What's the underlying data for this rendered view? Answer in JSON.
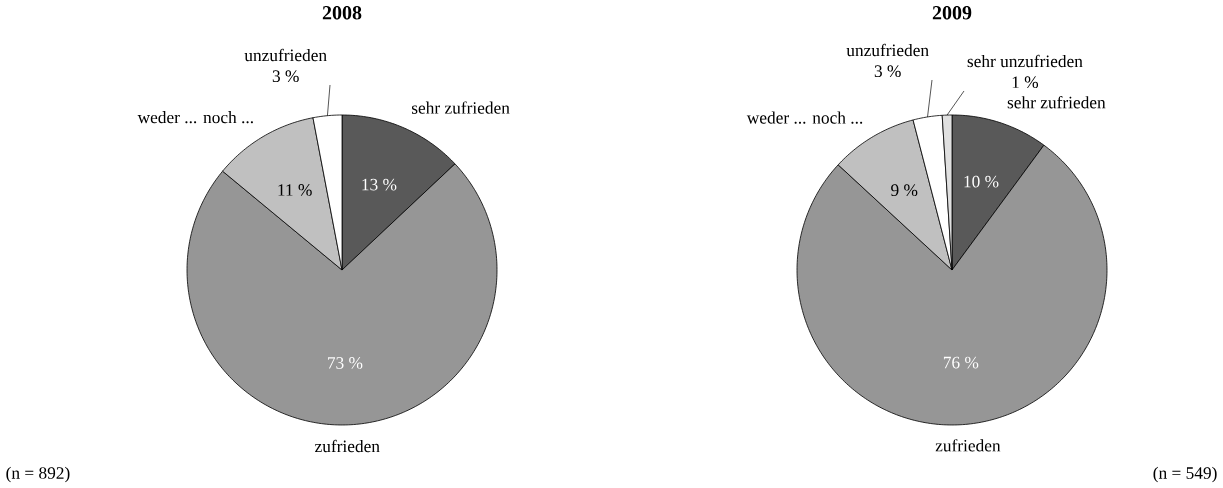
{
  "chart_data": [
    {
      "type": "pie",
      "title": "2008",
      "categories": [
        "sehr zufrieden",
        "zufrieden",
        "weder ... noch ...",
        "unzufrieden"
      ],
      "values": [
        13,
        73,
        11,
        3
      ],
      "colors": [
        "#595959",
        "#969696",
        "#c0c0c0",
        "#ffffff"
      ],
      "value_labels": [
        "13 %",
        "73 %",
        "11 %",
        "3 %"
      ],
      "annotations": [
        "(n = 892)"
      ]
    },
    {
      "type": "pie",
      "title": "2009",
      "categories": [
        "sehr zufrieden",
        "zufrieden",
        "weder ... noch ...",
        "unzufrieden",
        "sehr unzufrieden"
      ],
      "values": [
        10,
        76,
        9,
        3,
        1
      ],
      "colors": [
        "#595959",
        "#969696",
        "#c0c0c0",
        "#ffffff",
        "#e0e0e0"
      ],
      "value_labels": [
        "10 %",
        "76 %",
        "9 %",
        "3 %",
        "1 %"
      ],
      "annotations": [
        "(n = 549)"
      ]
    }
  ]
}
